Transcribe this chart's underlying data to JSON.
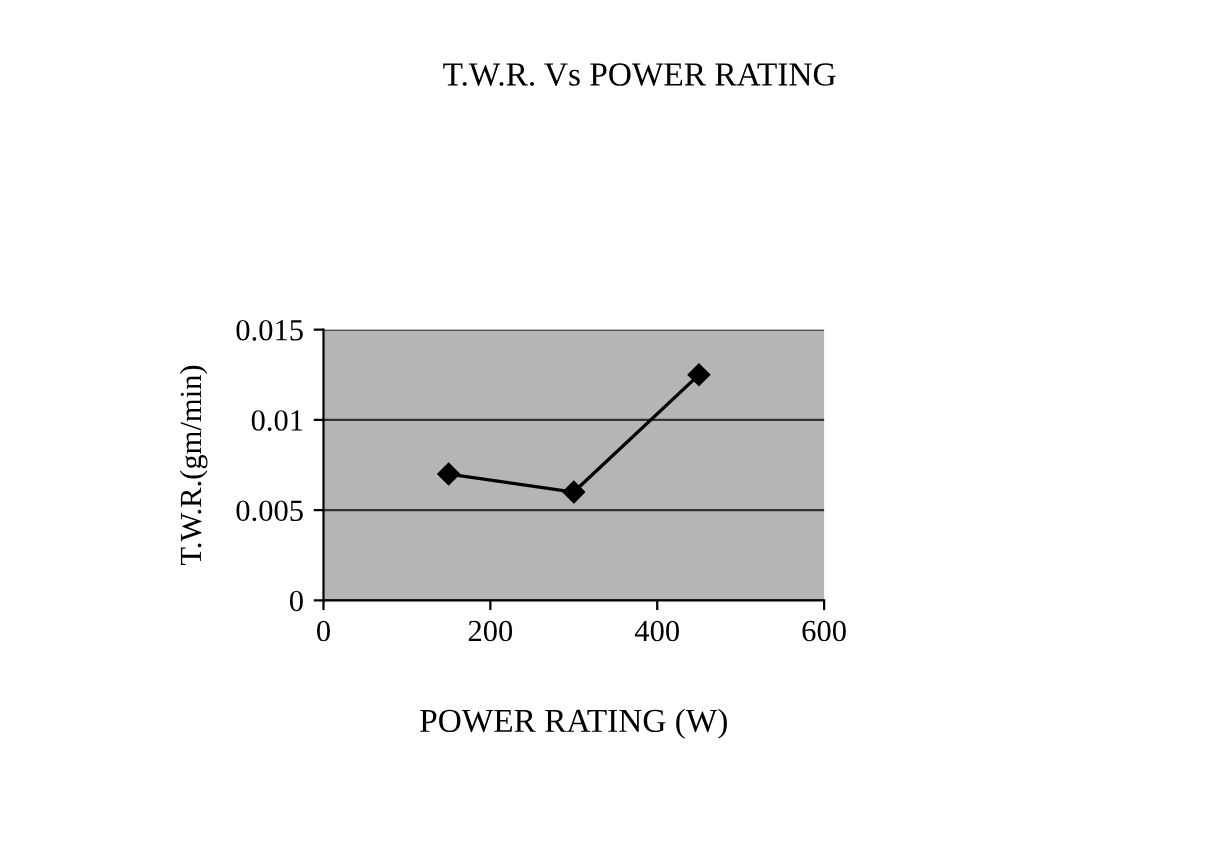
{
  "chart_data": {
    "type": "line",
    "title": "T.W.R. Vs POWER RATING",
    "xlabel": "POWER RATING (W)",
    "ylabel": "T.W.R.(gm/min)",
    "x": [
      150,
      300,
      450
    ],
    "series": [
      {
        "color": "#000000",
        "values": [
          0.007,
          0.006,
          0.0125
        ]
      }
    ],
    "xlim": [
      0,
      600
    ],
    "xticks": [
      0,
      200,
      400,
      600
    ],
    "ylim": [
      0,
      0.015
    ],
    "yticks": [
      0,
      0.005,
      0.01,
      0.015
    ],
    "grid": "y",
    "marker": "diamond",
    "line_style": "solid"
  }
}
